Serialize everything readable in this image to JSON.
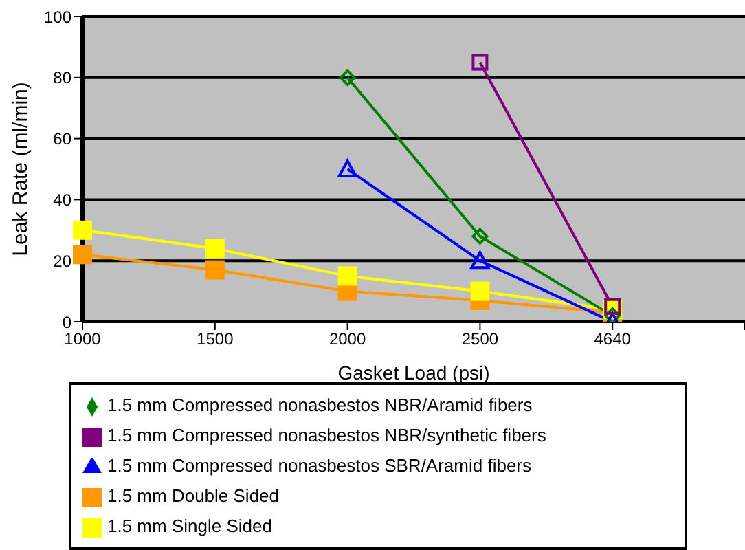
{
  "chart_data": {
    "type": "line",
    "xlabel": "Gasket Load (psi)",
    "ylabel": "Leak Rate (ml/min)",
    "categories": [
      "1000",
      "1500",
      "2000",
      "2500",
      "4640",
      null
    ],
    "series": [
      {
        "name": "1.5 mm Double Sided",
        "color": "#ff9900",
        "marker": "square",
        "values": [
          22,
          17,
          10,
          7,
          3,
          null
        ]
      },
      {
        "name": "1.5 mm Single Sided",
        "color": "#ffff00",
        "marker": "square",
        "values": [
          30,
          24,
          15,
          10,
          4,
          null
        ]
      },
      {
        "name": "1.5 mm Compressed nonasbestos NBR/Aramid fibers",
        "color": "#008000",
        "marker": "diamond",
        "values": [
          null,
          null,
          80,
          28,
          2,
          null
        ]
      },
      {
        "name": "1.5 mm Compressed nonasbestos SBR/Aramid fibers",
        "color": "#0000ff",
        "marker": "triangle",
        "values": [
          null,
          null,
          50,
          20,
          0,
          null
        ]
      },
      {
        "name": "1.5 mm Compressed nonasbestos NBR/synthetic fibers",
        "color": "#800080",
        "marker": "square",
        "values": [
          null,
          null,
          null,
          85,
          5,
          null
        ]
      }
    ],
    "ylim": [
      0,
      100
    ],
    "yticks": [
      0,
      20,
      40,
      60,
      80,
      100
    ],
    "grid": "y",
    "legend": "bottom",
    "line_style": "solid"
  }
}
